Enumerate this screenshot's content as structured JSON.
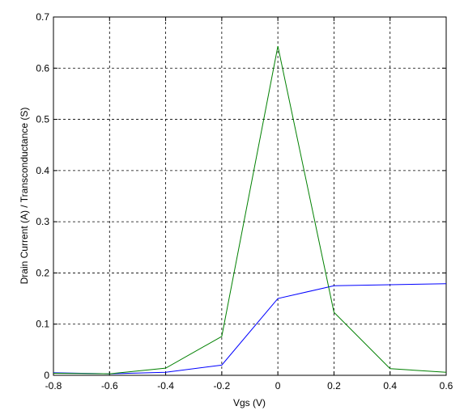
{
  "chart_data": {
    "type": "line",
    "x": [
      -0.8,
      -0.6,
      -0.4,
      -0.2,
      0,
      0.2,
      0.4,
      0.6
    ],
    "series": [
      {
        "color": "#0000ff",
        "values": [
          0.005,
          0.003,
          0.006,
          0.02,
          0.15,
          0.175,
          0.177,
          0.179
        ]
      },
      {
        "color": "#008000",
        "values": [
          0.004,
          0.003,
          0.014,
          0.076,
          0.643,
          0.123,
          0.013,
          0.006
        ]
      }
    ],
    "xlabel": "Vgs (V)",
    "ylabel": "Drain Current (A) / Transconductance (S)",
    "xlim": [
      -0.8,
      0.6
    ],
    "xticks": [
      -0.8,
      -0.6,
      -0.4,
      -0.2,
      0,
      0.2,
      0.4,
      0.6
    ],
    "ylim": [
      0,
      0.7
    ],
    "yticks": [
      0,
      0.1,
      0.2,
      0.3,
      0.4,
      0.5,
      0.6,
      0.7
    ],
    "grid": true
  }
}
